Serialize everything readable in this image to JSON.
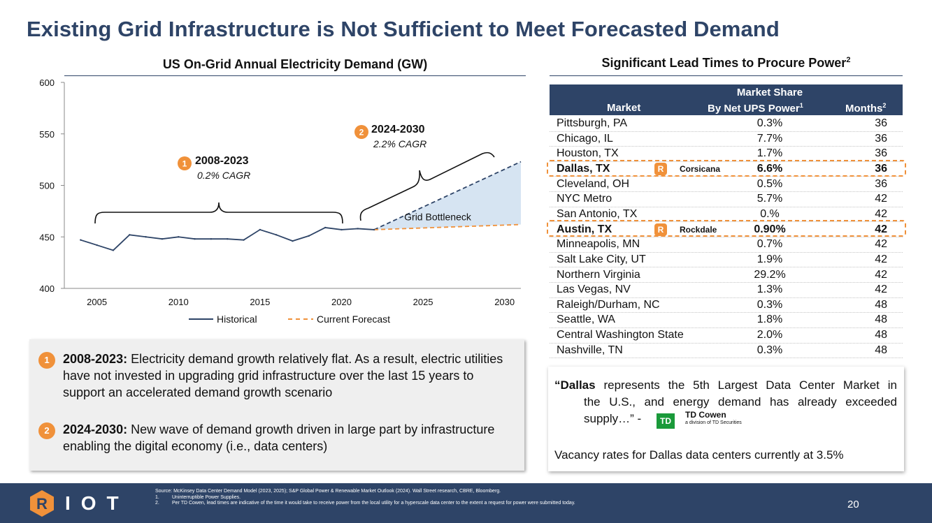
{
  "title": "Existing Grid Infrastructure is Not Sufficient to Meet Forecasted Demand",
  "chart": {
    "title": "US On-Grid Annual Electricity Demand (GW)",
    "annotation1": {
      "badge": "1",
      "period": "2008-2023",
      "cagr": "0.2% CAGR"
    },
    "annotation2": {
      "badge": "2",
      "period": "2024-2030",
      "cagr": "2.2% CAGR"
    },
    "bottleneck_label": "Grid Bottleneck",
    "legend": {
      "historical": "Historical",
      "forecast": "Current Forecast"
    }
  },
  "chart_data": {
    "type": "line",
    "title": "US On-Grid Annual Electricity Demand (GW)",
    "xlabel": "",
    "ylabel": "",
    "ylim": [
      400,
      600
    ],
    "xlim": [
      2003,
      2031
    ],
    "yticks": [
      "400",
      "450",
      "500",
      "550",
      "600"
    ],
    "xticks": [
      "2005",
      "2010",
      "2015",
      "2020",
      "2025",
      "2030"
    ],
    "series": [
      {
        "name": "Historical",
        "style": "solid",
        "x": [
          2004,
          2005,
          2006,
          2007,
          2008,
          2009,
          2010,
          2011,
          2012,
          2013,
          2014,
          2015,
          2016,
          2017,
          2018,
          2019,
          2020,
          2021,
          2022
        ],
        "y": [
          447,
          442,
          437,
          452,
          450,
          448,
          450,
          448,
          448,
          448,
          447,
          457,
          452,
          446,
          451,
          459,
          457,
          458,
          457
        ]
      },
      {
        "name": "Current Forecast",
        "style": "dashed",
        "x": [
          2022,
          2031
        ],
        "y": [
          457,
          462
        ]
      },
      {
        "name": "Grid Bottleneck",
        "style": "dashed-blue",
        "x": [
          2022,
          2031
        ],
        "y": [
          457,
          523
        ]
      }
    ]
  },
  "notes": [
    {
      "badge": "1",
      "period": "2008-2023:",
      "text": " Electricity demand growth relatively flat. As a result, electric utilities have not invested in upgrading grid infrastructure over the last 15 years to support an accelerated demand growth scenario"
    },
    {
      "badge": "2",
      "period": "2024-2030:",
      "text": " New wave of demand growth driven in large part by infrastructure enabling the digital economy (i.e., data centers)"
    }
  ],
  "table": {
    "title": "Significant Lead Times to Procure Power",
    "title_sup": "2",
    "headers": {
      "market": "Market",
      "share_line1": "Market Share",
      "share_line2": "By Net UPS Power",
      "share_sup": "1",
      "months": "Months",
      "months_sup": "2"
    },
    "rows": [
      {
        "market": "Pittsburgh, PA",
        "share": "0.3%",
        "months": "36"
      },
      {
        "market": "Chicago, IL",
        "share": "7.7%",
        "months": "36"
      },
      {
        "market": "Houston, TX",
        "share": "1.7%",
        "months": "36"
      },
      {
        "market": "Dallas, TX",
        "share": "6.6%",
        "months": "36",
        "site": "Corsicana",
        "logo": "R"
      },
      {
        "market": "Cleveland, OH",
        "share": "0.5%",
        "months": "36"
      },
      {
        "market": "NYC Metro",
        "share": "5.7%",
        "months": "42"
      },
      {
        "market": "San Antonio, TX",
        "share": "0.%",
        "months": "42"
      },
      {
        "market": "Austin, TX",
        "share": "0.90%",
        "months": "42",
        "site": "Rockdale",
        "logo": "R"
      },
      {
        "market": "Minneapolis, MN",
        "share": "0.7%",
        "months": "42"
      },
      {
        "market": "Salt Lake City, UT",
        "share": "1.9%",
        "months": "42"
      },
      {
        "market": "Northern Virginia",
        "share": "29.2%",
        "months": "42"
      },
      {
        "market": "Las Vegas, NV",
        "share": "1.3%",
        "months": "42"
      },
      {
        "market": "Raleigh/Durham, NC",
        "share": "0.3%",
        "months": "48"
      },
      {
        "market": "Seattle, WA",
        "share": "1.8%",
        "months": "48"
      },
      {
        "market": "Central Washington State",
        "share": "2.0%",
        "months": "48"
      },
      {
        "market": "Nashville, TN",
        "share": "0.3%",
        "months": "48"
      }
    ]
  },
  "quote": {
    "open": "“",
    "bold": "Dallas",
    "line1_rest": " represents the 5th Largest Data Center Market in",
    "line2": "the U.S., and energy demand has already exceeded",
    "line3": "supply…” -",
    "td_logo": "TD",
    "td_name": "TD Cowen",
    "td_sub": "a division of TD Securities",
    "vacancy": "Vacancy rates for Dallas data centers currently at 3.5%"
  },
  "footer": {
    "logo_letter": "R",
    "brand": "IOT",
    "source": "Source: McKinsey Data Center Demand Model (2023, 2025); S&P Global Power & Renewable Market Outlook (2024). Wall Street research, CBRE, Bloomberg.",
    "note1_num": "1.",
    "note1": "Uninterruptible Power Supplies.",
    "note2_num": "2.",
    "note2": "Per TD Cowen, lead times are indicative of the time it would take to receive power from the local utility for a hyperscale data center to the extent a request for power were submitted today.",
    "page": "20"
  },
  "colors": {
    "navy": "#2e4467",
    "orange": "#f0913a",
    "line": "#2e4467",
    "fill": "#d6e4f2",
    "td_green": "#1a9a3a"
  }
}
